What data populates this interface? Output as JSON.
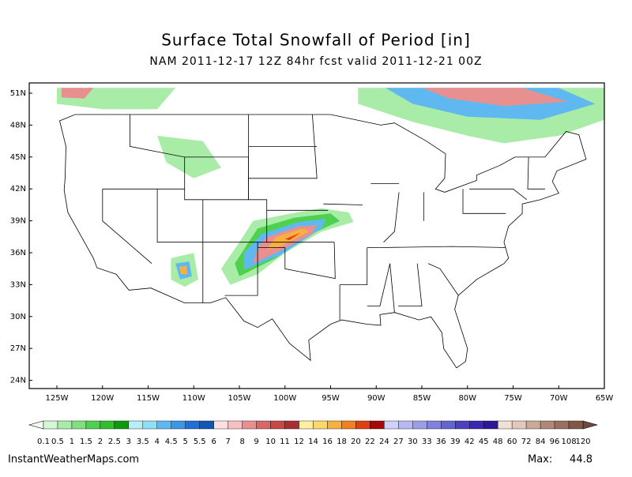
{
  "header": {
    "title": "Surface Total Snowfall of Period [in]",
    "subtitle": "NAM 2011-12-17 12Z 84hr fcst valid 2011-12-21 00Z"
  },
  "map": {
    "lat_labels": [
      "51N",
      "48N",
      "45N",
      "42N",
      "39N",
      "36N",
      "33N",
      "30N",
      "27N",
      "24N"
    ],
    "lon_labels": [
      "125W",
      "120W",
      "115W",
      "110W",
      "105W",
      "100W",
      "95W",
      "90W",
      "85W",
      "80W",
      "75W",
      "70W",
      "65W"
    ]
  },
  "colorbar": {
    "levels": [
      0.1,
      0.5,
      1,
      1.5,
      2,
      2.5,
      3,
      3.5,
      4,
      4.5,
      5,
      5.5,
      6,
      7,
      8,
      9,
      10,
      11,
      12,
      14,
      16,
      18,
      20,
      22,
      24,
      27,
      30,
      33,
      36,
      39,
      42,
      45,
      48,
      60,
      72,
      84,
      96,
      108,
      120
    ],
    "colors": [
      "#d4f7d4",
      "#a8eca8",
      "#7fe07f",
      "#4fd14f",
      "#2fbf2f",
      "#0e9a0e",
      "#b8eef8",
      "#8fdff5",
      "#5fb9f0",
      "#3c96e6",
      "#1f6fd6",
      "#1456b4",
      "#ffe0e0",
      "#f8c0c0",
      "#e89090",
      "#d86868",
      "#c84848",
      "#a83030",
      "#fff0a0",
      "#fcd86a",
      "#f8b040",
      "#f08020",
      "#e04010",
      "#a80808",
      "#d0d0f8",
      "#b8b8f0",
      "#9c9ce8",
      "#8080e0",
      "#6464d0",
      "#4c40c0",
      "#3c28b0",
      "#2c1898",
      "#f0e0d8",
      "#e0c8bc",
      "#c8a898",
      "#b08878",
      "#987060",
      "#805848"
    ],
    "under_color": "#f4fff4",
    "over_color": "#6e4a3e"
  },
  "footer": {
    "source": "InstantWeatherMaps.com",
    "max_label": "Max:",
    "max_value": 44.8
  }
}
